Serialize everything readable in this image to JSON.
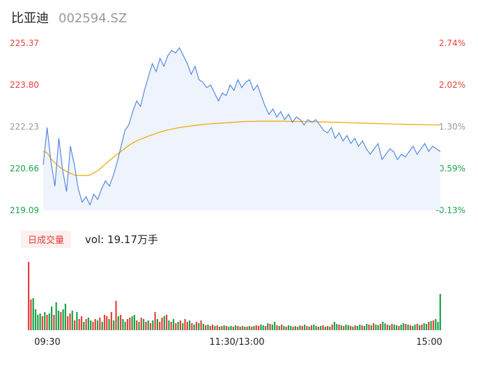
{
  "header": {
    "name": "比亚迪",
    "code": "002594.SZ"
  },
  "volume_panel": {
    "tag": "日成交量",
    "vol_label": "vol: 19.17万手"
  },
  "colors": {
    "price_line": "#4a7fe0",
    "avg_line": "#f0a500",
    "area_fill": "#eef3fc",
    "up": "#e8403a",
    "down": "#1aa34a",
    "flat_text": "#999999",
    "axis_text": "#222222"
  },
  "chart_data": [
    {
      "type": "line",
      "subtype": "intraday-price",
      "y_ticks_left": [
        "225.37",
        "223.80",
        "222.23",
        "220.66",
        "219.09"
      ],
      "y_ticks_right": [
        "2.74%",
        "2.02%",
        "1.30%",
        "0.59%",
        "-0.13%"
      ],
      "ylim": [
        219.09,
        225.37
      ],
      "reference_close": 222.23,
      "x_ticks": [
        "09:30",
        "11:30/13:00",
        "15:00"
      ],
      "series": [
        {
          "values": [
            220.8,
            222.2,
            220.9,
            220.0,
            221.8,
            220.6,
            219.8,
            221.5,
            220.8,
            219.9,
            219.4,
            219.6,
            219.3,
            219.7,
            219.5,
            219.9,
            220.2,
            220.0,
            220.4,
            220.9,
            221.5,
            222.1,
            222.3,
            222.8,
            223.2,
            223.0,
            223.6,
            224.1,
            224.6,
            224.3,
            224.8,
            224.5,
            224.9,
            225.1,
            225.0,
            225.2,
            224.9,
            224.6,
            224.2,
            224.5,
            224.0,
            223.9,
            223.7,
            223.8,
            223.5,
            223.2,
            223.5,
            223.4,
            223.8,
            223.6,
            224.0,
            223.7,
            223.9,
            224.0,
            223.6,
            223.8,
            223.4,
            223.0,
            222.7,
            222.9,
            222.6,
            222.8,
            222.5,
            222.7,
            222.4,
            222.6,
            222.5,
            222.3,
            222.5,
            222.4,
            222.5,
            222.3,
            222.1,
            222.0,
            222.2,
            221.8,
            222.0,
            221.7,
            221.9,
            221.6,
            221.8,
            221.5,
            221.7,
            221.4,
            221.2,
            221.4,
            221.6,
            221.0,
            221.2,
            221.4,
            221.3,
            221.0,
            221.2,
            221.1,
            221.3,
            221.5,
            221.2,
            221.4,
            221.6,
            221.3,
            221.5,
            221.4,
            221.3
          ]
        },
        {
          "values": [
            221.3,
            221.26,
            221.02,
            220.88,
            220.74,
            220.64,
            220.55,
            220.48,
            220.42,
            220.4,
            220.4,
            220.4,
            220.42,
            220.5,
            220.58,
            220.7,
            220.84,
            220.96,
            221.08,
            221.2,
            221.31,
            221.42,
            221.53,
            221.62,
            221.7,
            221.76,
            221.82,
            221.88,
            221.93,
            221.98,
            222.03,
            222.07,
            222.11,
            222.14,
            222.17,
            222.2,
            222.22,
            222.24,
            222.26,
            222.28,
            222.3,
            222.32,
            222.33,
            222.34,
            222.35,
            222.36,
            222.37,
            222.38,
            222.39,
            222.4,
            222.41,
            222.42,
            222.43,
            222.43,
            222.43,
            222.44,
            222.44,
            222.44,
            222.44,
            222.44,
            222.44,
            222.44,
            222.44,
            222.43,
            222.43,
            222.43,
            222.43,
            222.43,
            222.42,
            222.42,
            222.42,
            222.41,
            222.41,
            222.41,
            222.4,
            222.4,
            222.4,
            222.39,
            222.39,
            222.38,
            222.38,
            222.37,
            222.37,
            222.36,
            222.36,
            222.35,
            222.35,
            222.34,
            222.34,
            222.34,
            222.33,
            222.33,
            222.33,
            222.32,
            222.32,
            222.32,
            222.31,
            222.31,
            222.31,
            222.3,
            222.3,
            222.3,
            222.3
          ]
        }
      ]
    },
    {
      "type": "bar",
      "subtype": "intraday-volume",
      "values": [
        98,
        44,
        46,
        30,
        22,
        24,
        20,
        26,
        22,
        24,
        34,
        22,
        40,
        28,
        26,
        30,
        38,
        20,
        24,
        28,
        14,
        26,
        16,
        20,
        12,
        16,
        18,
        14,
        12,
        16,
        14,
        18,
        12,
        22,
        20,
        16,
        26,
        14,
        42,
        20,
        22,
        16,
        12,
        16,
        18,
        20,
        22,
        14,
        12,
        18,
        16,
        12,
        14,
        10,
        14,
        26,
        16,
        12,
        18,
        20,
        22,
        14,
        12,
        16,
        10,
        12,
        14,
        10,
        16,
        12,
        14,
        10,
        8,
        12,
        10,
        14,
        9,
        7,
        8,
        6,
        8,
        6,
        7,
        5,
        6,
        7,
        6,
        5,
        6,
        5,
        7,
        6,
        5,
        6,
        5,
        5,
        6,
        5,
        6,
        7,
        6,
        8,
        7,
        6,
        10,
        9,
        8,
        12,
        7,
        6,
        8,
        6,
        5,
        7,
        6,
        5,
        6,
        5,
        7,
        6,
        8,
        6,
        5,
        7,
        8,
        6,
        5,
        6,
        7,
        5,
        6,
        5,
        8,
        12,
        9,
        8,
        7,
        6,
        8,
        7,
        6,
        5,
        7,
        6,
        8,
        7,
        6,
        9,
        8,
        7,
        10,
        8,
        7,
        9,
        12,
        10,
        8,
        7,
        9,
        8,
        7,
        6,
        8,
        10,
        9,
        8,
        7,
        6,
        8,
        9,
        7,
        8,
        10,
        9,
        12,
        13,
        14,
        16,
        12,
        52
      ],
      "up_flags": [
        1,
        1,
        0,
        0,
        0,
        0,
        1,
        0,
        1,
        0,
        0,
        1,
        0,
        0,
        1,
        0,
        0,
        1,
        1,
        0,
        1,
        0,
        1,
        1,
        0,
        1,
        0,
        0,
        1,
        1,
        0,
        1,
        0,
        1,
        1,
        0,
        1,
        0,
        1,
        0,
        1,
        0,
        0,
        1,
        1,
        0,
        0,
        1,
        0,
        1,
        0,
        1,
        0,
        1,
        0,
        1,
        0,
        1,
        1,
        0,
        1,
        0,
        1,
        0,
        1,
        0,
        1,
        0,
        1,
        1,
        0,
        1,
        0,
        1,
        0,
        1,
        0,
        1,
        0,
        1,
        1,
        0,
        1,
        0,
        1,
        0,
        1,
        0,
        0,
        1,
        0,
        1,
        0,
        1,
        0,
        1,
        0,
        1,
        0,
        1,
        1,
        0,
        0,
        1,
        0,
        1,
        0,
        0,
        1,
        0,
        1,
        0,
        1,
        0,
        0,
        1,
        0,
        1,
        0,
        1,
        0,
        1,
        0,
        1,
        0,
        0,
        1,
        0,
        1,
        0,
        1,
        0,
        1,
        0,
        0,
        1,
        0,
        1,
        0,
        0,
        1,
        0,
        1,
        0,
        0,
        1,
        0,
        0,
        1,
        0,
        1,
        0,
        0,
        1,
        0,
        0,
        1,
        0,
        1,
        0,
        0,
        1,
        0,
        0,
        1,
        0,
        1,
        0,
        0,
        1,
        0,
        1,
        0,
        0,
        1,
        0,
        1,
        0,
        0,
        0
      ]
    }
  ]
}
